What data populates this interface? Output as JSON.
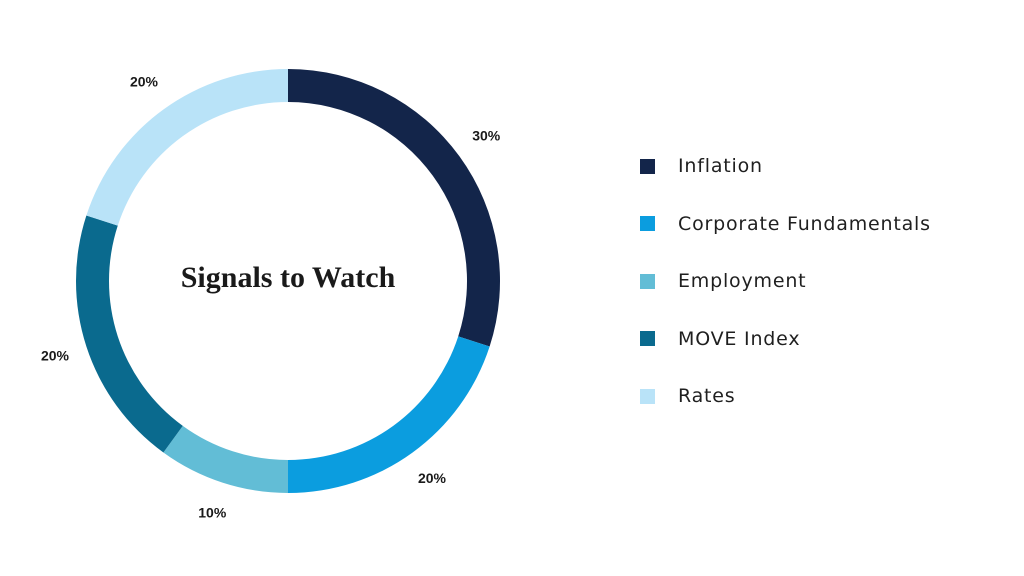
{
  "chart_data": {
    "type": "pie",
    "variant": "donut",
    "title": "Signals to Watch",
    "categories": [
      "Inflation",
      "Corporate Fundamentals",
      "Employment",
      "MOVE Index",
      "Rates"
    ],
    "values": [
      30,
      20,
      10,
      20,
      20
    ],
    "value_labels": [
      "30%",
      "20%",
      "10%",
      "20%",
      "20%"
    ],
    "colors": [
      "#13254a",
      "#0b9ddf",
      "#62bdd6",
      "#0a6a8e",
      "#b9e3f8"
    ],
    "start_angle": "12 o'clock",
    "direction": "clockwise",
    "legend_placement": "right"
  }
}
